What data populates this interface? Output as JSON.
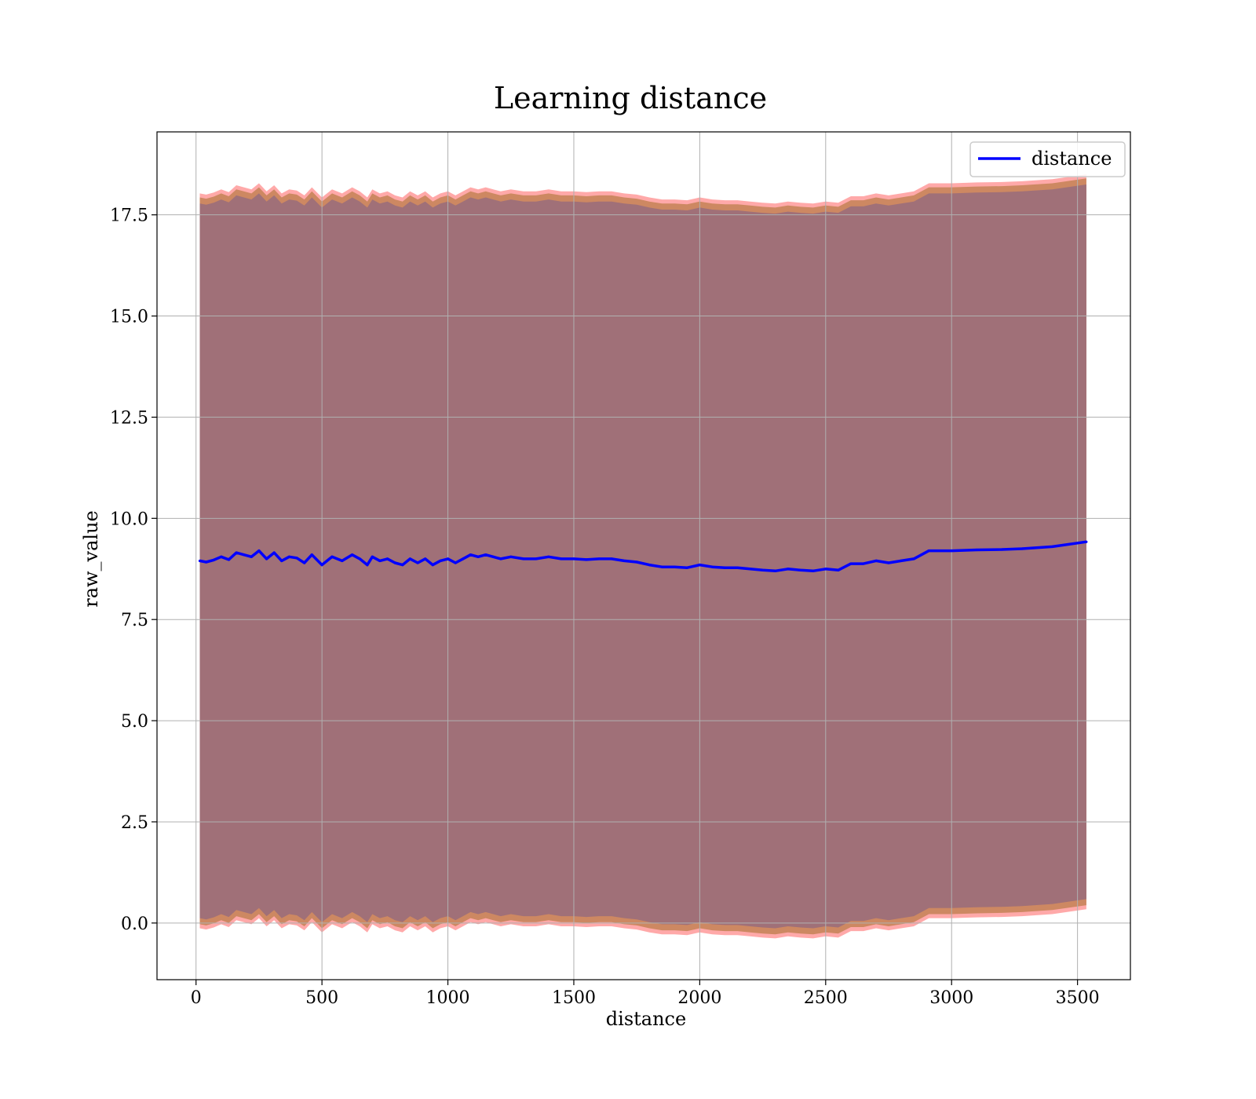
{
  "chart_data": {
    "type": "line",
    "title": "Learning distance",
    "xlabel": "distance",
    "ylabel": "raw_value",
    "xlim": [
      -155,
      3710
    ],
    "ylim": [
      -1.4,
      19.55
    ],
    "xticks": [
      0,
      500,
      1000,
      1500,
      2000,
      2500,
      3000,
      3500
    ],
    "xtick_labels": [
      "0",
      "500",
      "1000",
      "1500",
      "2000",
      "2500",
      "3000",
      "3500"
    ],
    "yticks": [
      0.0,
      2.5,
      5.0,
      7.5,
      10.0,
      12.5,
      15.0,
      17.5
    ],
    "ytick_labels": [
      "0.0",
      "2.5",
      "5.0",
      "7.5",
      "10.0",
      "12.5",
      "15.0",
      "17.5"
    ],
    "grid": true,
    "legend_position": "top-right",
    "colors": {
      "line": "#0000ff",
      "band_outer": "#ff8c8c",
      "band_middle": "#c8845a",
      "band_inner": "#a07078",
      "grid": "#b0b0b0"
    },
    "series": [
      {
        "name": "distance",
        "x": [
          15,
          40,
          70,
          100,
          130,
          160,
          190,
          220,
          250,
          280,
          310,
          340,
          370,
          400,
          430,
          460,
          500,
          540,
          580,
          620,
          650,
          680,
          700,
          730,
          760,
          790,
          820,
          850,
          880,
          910,
          940,
          970,
          1000,
          1030,
          1060,
          1090,
          1120,
          1150,
          1180,
          1210,
          1250,
          1300,
          1350,
          1400,
          1450,
          1500,
          1550,
          1600,
          1650,
          1700,
          1750,
          1800,
          1850,
          1900,
          1950,
          2000,
          2050,
          2100,
          2150,
          2200,
          2250,
          2300,
          2350,
          2400,
          2450,
          2500,
          2550,
          2600,
          2650,
          2700,
          2750,
          2800,
          2850,
          2910,
          3000,
          3100,
          3200,
          3280,
          3400,
          3535
        ],
        "values": [
          8.95,
          8.92,
          8.97,
          9.05,
          8.98,
          9.15,
          9.1,
          9.05,
          9.2,
          9.0,
          9.15,
          8.95,
          9.05,
          9.02,
          8.9,
          9.1,
          8.85,
          9.05,
          8.95,
          9.1,
          9.0,
          8.85,
          9.05,
          8.95,
          9.0,
          8.9,
          8.85,
          9.0,
          8.9,
          9.0,
          8.85,
          8.95,
          9.0,
          8.9,
          9.0,
          9.1,
          9.05,
          9.1,
          9.05,
          9.0,
          9.05,
          9.0,
          9.0,
          9.05,
          9.0,
          9.0,
          8.98,
          9.0,
          9.0,
          8.95,
          8.92,
          8.85,
          8.8,
          8.8,
          8.78,
          8.85,
          8.8,
          8.78,
          8.78,
          8.75,
          8.72,
          8.7,
          8.75,
          8.72,
          8.7,
          8.75,
          8.72,
          8.88,
          8.88,
          8.95,
          8.9,
          8.95,
          9.0,
          9.2,
          9.2,
          9.22,
          9.23,
          9.25,
          9.3,
          9.42
        ],
        "band_offsets": {
          "outer": 9.08,
          "middle": 8.98,
          "inner": 8.83
        }
      }
    ]
  }
}
